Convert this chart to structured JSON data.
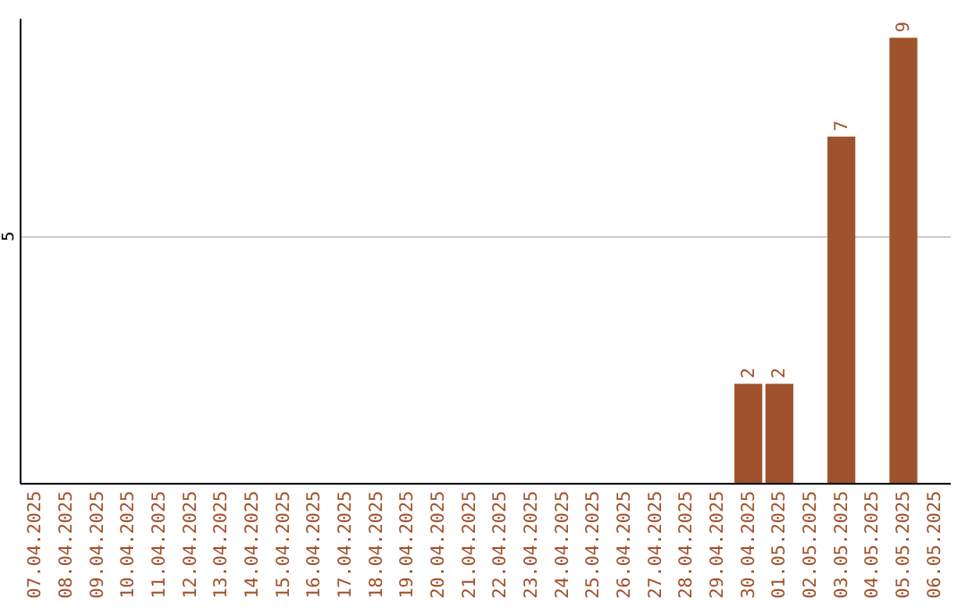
{
  "chart_data": {
    "type": "bar",
    "categories": [
      "07.04.2025",
      "08.04.2025",
      "09.04.2025",
      "10.04.2025",
      "11.04.2025",
      "12.04.2025",
      "13.04.2025",
      "14.04.2025",
      "15.04.2025",
      "16.04.2025",
      "17.04.2025",
      "18.04.2025",
      "19.04.2025",
      "20.04.2025",
      "21.04.2025",
      "22.04.2025",
      "23.04.2025",
      "24.04.2025",
      "25.04.2025",
      "26.04.2025",
      "27.04.2025",
      "28.04.2025",
      "29.04.2025",
      "30.04.2025",
      "01.05.2025",
      "02.05.2025",
      "03.05.2025",
      "04.05.2025",
      "05.05.2025",
      "06.05.2025"
    ],
    "values": [
      null,
      null,
      null,
      null,
      null,
      null,
      null,
      null,
      null,
      null,
      null,
      null,
      null,
      null,
      null,
      null,
      null,
      null,
      null,
      null,
      null,
      null,
      null,
      2,
      2,
      null,
      7,
      null,
      9,
      null
    ],
    "color": "#a0522d",
    "ylim": [
      0,
      9.4
    ],
    "yticks": [
      {
        "value": 0,
        "label": null
      },
      5
    ],
    "grid": "y",
    "data_labels": true
  }
}
